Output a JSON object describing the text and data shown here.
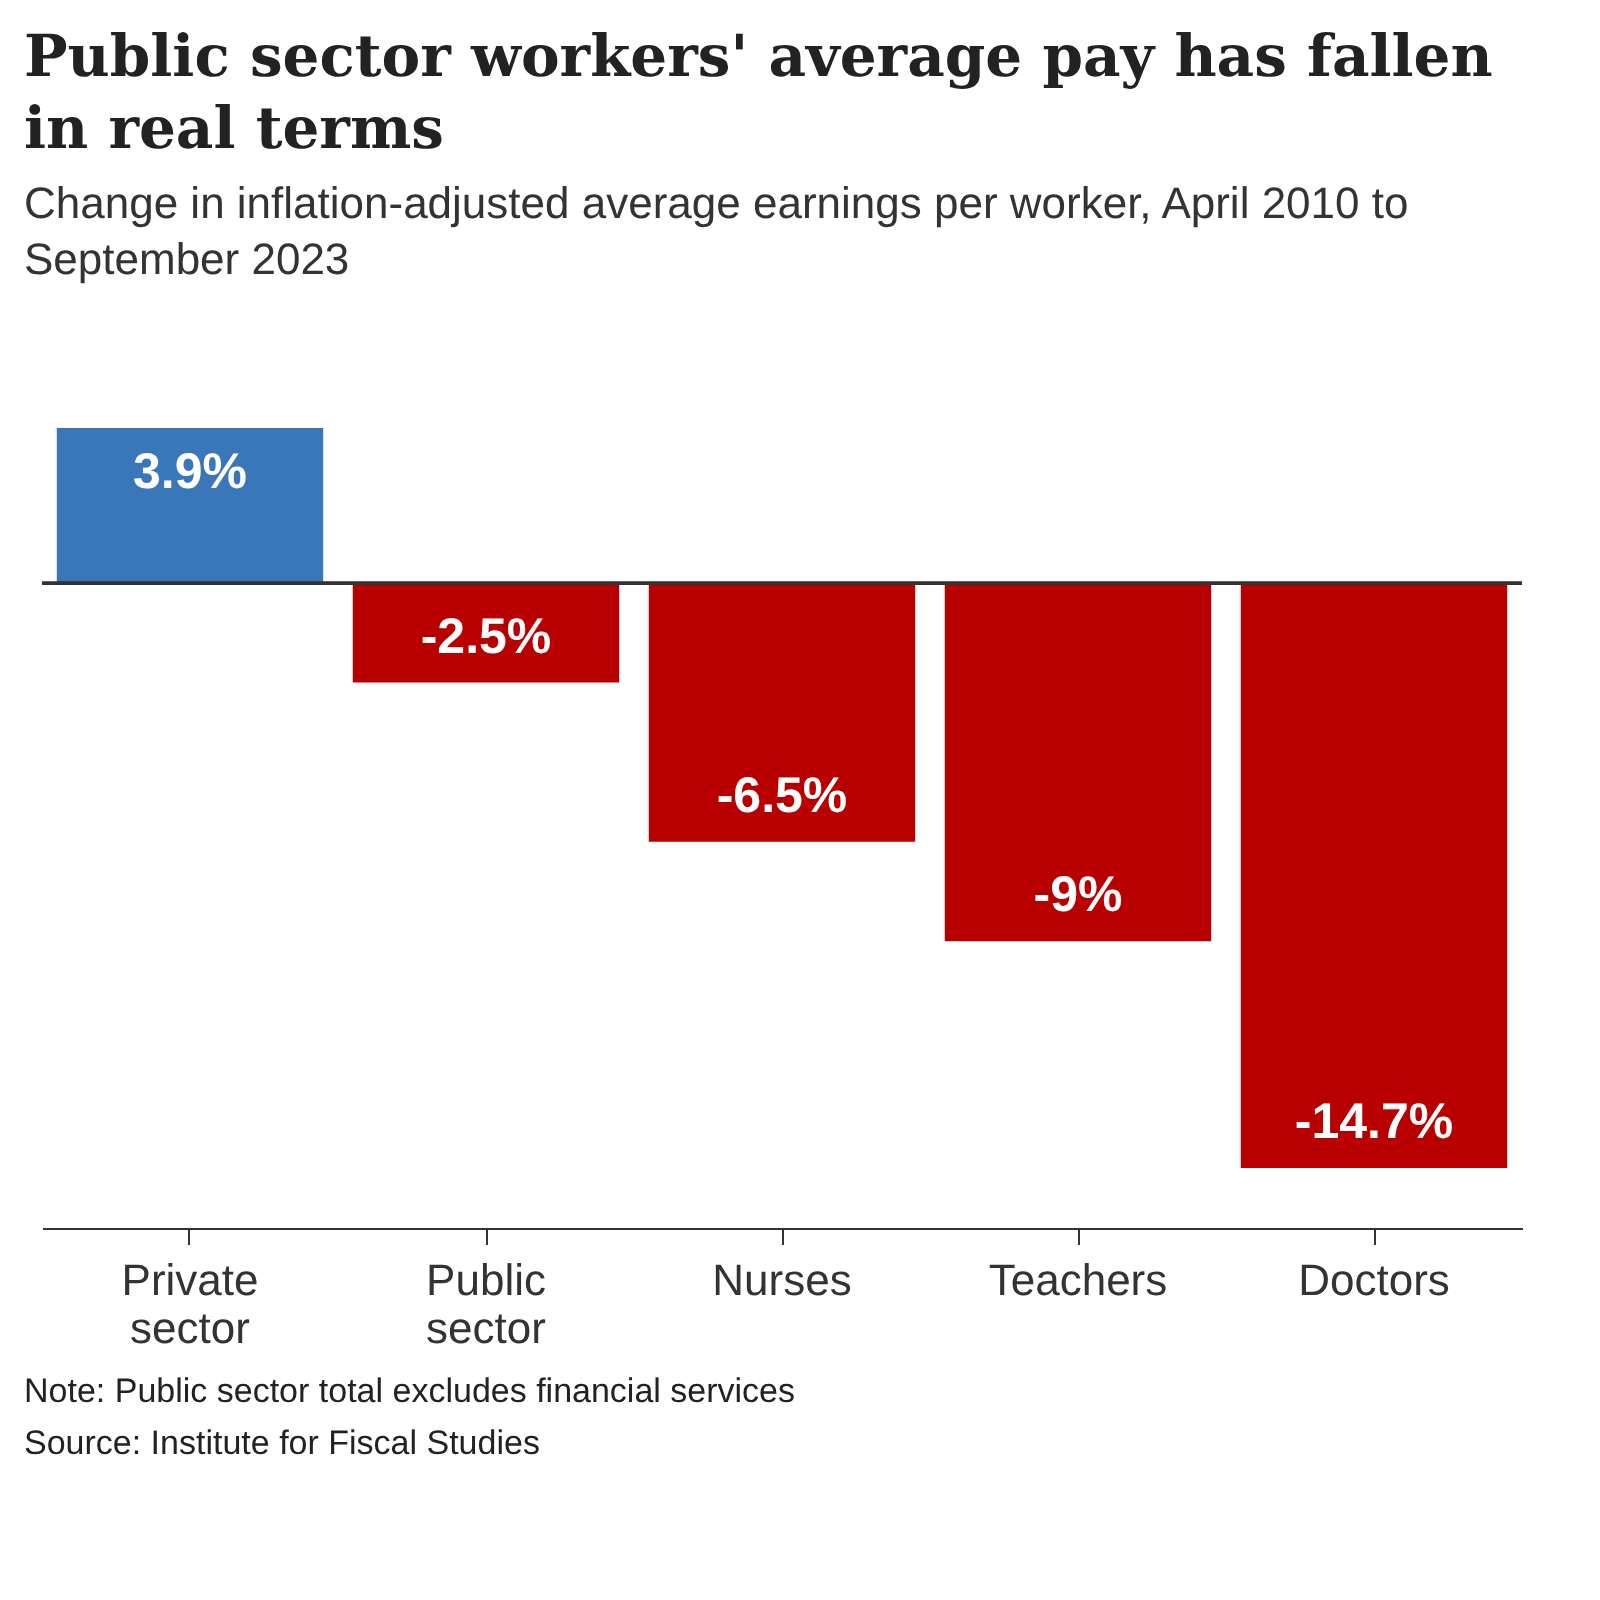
{
  "chart_data": {
    "type": "bar",
    "title": "Public sector workers' average pay has fallen in real terms",
    "subtitle": "Change in inflation-adjusted average earnings per worker, April 2010 to September 2023",
    "categories": [
      "Private sector",
      "Public sector",
      "Nurses",
      "Teachers",
      "Doctors"
    ],
    "values": [
      3.9,
      -2.5,
      -6.5,
      -9,
      -14.7
    ],
    "colors": [
      "#3a77b8",
      "#b80000",
      "#b80000",
      "#b80000",
      "#b80000"
    ],
    "annotations": [
      "Note: Public sector total excludes financial services",
      "Source: Institute for Fiscal Studies"
    ],
    "value_labels": [
      "3.9%",
      "-2.5%",
      "-6.5%",
      "-9%",
      "-14.7%"
    ]
  }
}
